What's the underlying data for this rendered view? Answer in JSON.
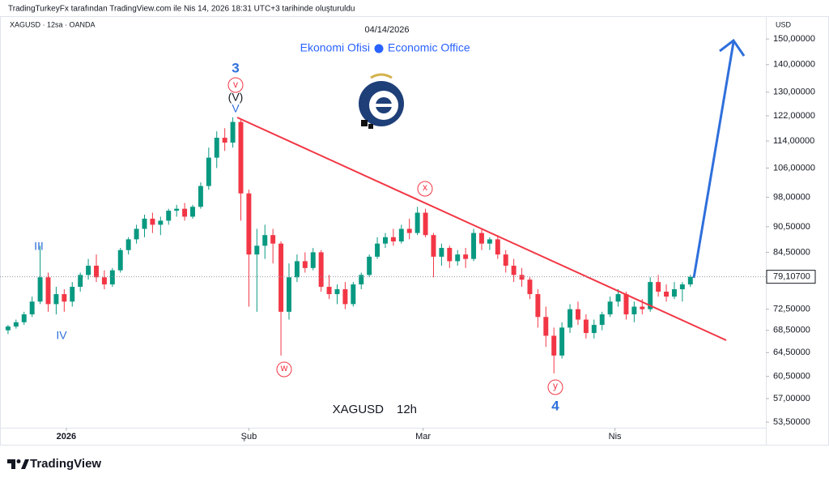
{
  "header": {
    "attribution": "TradingTurkeyFx tarafından TradingView.com ile Nis 14, 2026 18:31 UTC+3 tarihinde oluşturuldu",
    "symbol": "XAGUSD · 12sa · OANDA"
  },
  "chart_data": {
    "type": "candlestick",
    "title": "04/14/2026",
    "subtitle_left": "Ekonomi Ofisi",
    "subtitle_right": "Economic Office",
    "watermark_symbol": "XAGUSD",
    "watermark_interval": "12h",
    "y_unit": "USD",
    "log_scale": true,
    "colors": {
      "up": "#089981",
      "down": "#f23645"
    },
    "ylim": [
      52.7,
      159.5
    ],
    "yticks": [
      {
        "value": 150,
        "label": "150,00000"
      },
      {
        "value": 140,
        "label": "140,00000"
      },
      {
        "value": 130,
        "label": "130,00000"
      },
      {
        "value": 122,
        "label": "122,00000"
      },
      {
        "value": 114,
        "label": "114,00000"
      },
      {
        "value": 106,
        "label": "106,00000"
      },
      {
        "value": 98,
        "label": "98,00000"
      },
      {
        "value": 90.5,
        "label": "90,50000"
      },
      {
        "value": 84.5,
        "label": "84,50000"
      },
      {
        "value": 72.5,
        "label": "72,50000"
      },
      {
        "value": 68.5,
        "label": "68,50000"
      },
      {
        "value": 64.5,
        "label": "64,50000"
      },
      {
        "value": 60.5,
        "label": "60,50000"
      },
      {
        "value": 57,
        "label": "57,00000"
      },
      {
        "value": 53.5,
        "label": "53,50000"
      }
    ],
    "xlim": [
      -1,
      94.4
    ],
    "xticks": [
      {
        "value": 7.26,
        "label": "2026"
      },
      {
        "value": 30,
        "label": "Şub"
      },
      {
        "value": 51.7,
        "label": "Mar"
      },
      {
        "value": 75.6,
        "label": "Nis"
      }
    ],
    "candles": [
      [
        68.5,
        69.5,
        67.8,
        69.2
      ],
      [
        69.2,
        70.5,
        68.8,
        70
      ],
      [
        70,
        72,
        69.5,
        71.5
      ],
      [
        71.5,
        75,
        71,
        74
      ],
      [
        74,
        86,
        73.5,
        79
      ],
      [
        79,
        80,
        72,
        73.5
      ],
      [
        73.5,
        77,
        71.5,
        75.5
      ],
      [
        75.5,
        76.5,
        72,
        74
      ],
      [
        74,
        78,
        73,
        77
      ],
      [
        77,
        80,
        76,
        79.5
      ],
      [
        79.5,
        83,
        78.5,
        81.5
      ],
      [
        81.5,
        84,
        78,
        79
      ],
      [
        79,
        80.5,
        76.5,
        77.5
      ],
      [
        77.5,
        81,
        77,
        80.5
      ],
      [
        80.5,
        85.5,
        80,
        85
      ],
      [
        85,
        88,
        84,
        87.5
      ],
      [
        87.5,
        91,
        86.5,
        90
      ],
      [
        90,
        93.5,
        88,
        92.5
      ],
      [
        92.5,
        94,
        89,
        91
      ],
      [
        91,
        93,
        88.5,
        92
      ],
      [
        92,
        95,
        91,
        94.5
      ],
      [
        94.5,
        96,
        93,
        95
      ],
      [
        95,
        96.5,
        92,
        93
      ],
      [
        93,
        96,
        92.5,
        95.5
      ],
      [
        95.5,
        102,
        95,
        101
      ],
      [
        101,
        112,
        100,
        109
      ],
      [
        109,
        117,
        106,
        115
      ],
      [
        115,
        118,
        111,
        113.5
      ],
      [
        113.5,
        121.5,
        112,
        120
      ],
      [
        120,
        121,
        92,
        99
      ],
      [
        99,
        100,
        73,
        84
      ],
      [
        84,
        90,
        72,
        86
      ],
      [
        86,
        91,
        83,
        88.5
      ],
      [
        88.5,
        90,
        82,
        86.5
      ],
      [
        86.5,
        87,
        64,
        72
      ],
      [
        72,
        82,
        70.5,
        79
      ],
      [
        79,
        84,
        78,
        82.5
      ],
      [
        82.5,
        84.5,
        80,
        81
      ],
      [
        81,
        85.5,
        80.5,
        84.5
      ],
      [
        84.5,
        85,
        76,
        77
      ],
      [
        77,
        79.5,
        74.5,
        75.5
      ],
      [
        75.5,
        77.5,
        73.5,
        76.5
      ],
      [
        76.5,
        78,
        72.5,
        73.5
      ],
      [
        73.5,
        78,
        73,
        77.5
      ],
      [
        77.5,
        80,
        76.5,
        79.5
      ],
      [
        79.5,
        84,
        79,
        83.5
      ],
      [
        83.5,
        88,
        83,
        86.5
      ],
      [
        86.5,
        89,
        85.5,
        88
      ],
      [
        88,
        90,
        86,
        87
      ],
      [
        87,
        91,
        86.5,
        90
      ],
      [
        90,
        92.5,
        87.5,
        89
      ],
      [
        89,
        95.5,
        88.5,
        94
      ],
      [
        94,
        95,
        88,
        88.5
      ],
      [
        88.5,
        89,
        79,
        83.5
      ],
      [
        83.5,
        86.5,
        81.5,
        85.5
      ],
      [
        85.5,
        86,
        81,
        82.5
      ],
      [
        82.5,
        85,
        81.5,
        84
      ],
      [
        84,
        85.5,
        81,
        83
      ],
      [
        83,
        90,
        82.5,
        89
      ],
      [
        89,
        90,
        85,
        86.5
      ],
      [
        86.5,
        88,
        85,
        87.5
      ],
      [
        87.5,
        88.5,
        83,
        84
      ],
      [
        84,
        85,
        80,
        81.5
      ],
      [
        81.5,
        83,
        78,
        79.5
      ],
      [
        79.5,
        81,
        77,
        78.5
      ],
      [
        78.5,
        79,
        74.5,
        75.5
      ],
      [
        75.5,
        76.5,
        69,
        71
      ],
      [
        71,
        73,
        65.5,
        67.5
      ],
      [
        67.5,
        69,
        61,
        64
      ],
      [
        64,
        70,
        63.5,
        69
      ],
      [
        69,
        73.5,
        68,
        72.5
      ],
      [
        72.5,
        74,
        69.5,
        70.5
      ],
      [
        70.5,
        71.5,
        67,
        68
      ],
      [
        68,
        70.5,
        67,
        69.5
      ],
      [
        69.5,
        72,
        68.5,
        71.5
      ],
      [
        71.5,
        75,
        71,
        74
      ],
      [
        74,
        76.5,
        73,
        75.5
      ],
      [
        75.5,
        76,
        70.5,
        71.5
      ],
      [
        71.5,
        74,
        70,
        73
      ],
      [
        73,
        74.5,
        71.5,
        72.5
      ],
      [
        72.5,
        79,
        72,
        78
      ],
      [
        78,
        79.5,
        75,
        76
      ],
      [
        76,
        77.5,
        74,
        75
      ],
      [
        75,
        78,
        74.5,
        76.5
      ],
      [
        76.5,
        78,
        74,
        77.5
      ],
      [
        77.5,
        79.5,
        77,
        79.107
      ]
    ],
    "last_price": {
      "value": 79.107,
      "label": "79,10700"
    },
    "annotations": [
      "3",
      "v",
      "(V)",
      "V",
      "III",
      "IV",
      "w",
      "x",
      "y",
      "4"
    ]
  },
  "footer": {
    "brand": "TradingView"
  }
}
